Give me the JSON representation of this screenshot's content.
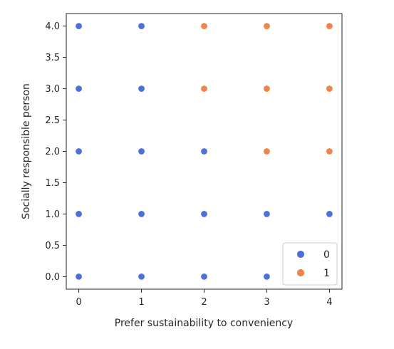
{
  "chart_data": {
    "type": "scatter",
    "title": "",
    "xlabel": "Prefer sustainability to conveniency",
    "ylabel": "Socially responsible person",
    "xlim": [
      -0.2,
      4.2
    ],
    "ylim": [
      -0.2,
      4.2
    ],
    "xticks": [
      "0",
      "1",
      "2",
      "3",
      "4"
    ],
    "yticks": [
      "0.0",
      "0.5",
      "1.0",
      "1.5",
      "2.0",
      "2.5",
      "3.0",
      "3.5",
      "4.0"
    ],
    "legend": {
      "position": "lower-right"
    },
    "grid": false,
    "series": [
      {
        "name": "0",
        "color": "#4c72d9",
        "points": [
          {
            "x": 0,
            "y": 0
          },
          {
            "x": 0,
            "y": 1
          },
          {
            "x": 0,
            "y": 2
          },
          {
            "x": 0,
            "y": 3
          },
          {
            "x": 0,
            "y": 4
          },
          {
            "x": 1,
            "y": 0
          },
          {
            "x": 1,
            "y": 1
          },
          {
            "x": 1,
            "y": 2
          },
          {
            "x": 1,
            "y": 3
          },
          {
            "x": 1,
            "y": 4
          },
          {
            "x": 2,
            "y": 0
          },
          {
            "x": 2,
            "y": 1
          },
          {
            "x": 2,
            "y": 2
          },
          {
            "x": 3,
            "y": 0
          },
          {
            "x": 3,
            "y": 1
          },
          {
            "x": 4,
            "y": 1
          }
        ]
      },
      {
        "name": "1",
        "color": "#ee854a",
        "points": [
          {
            "x": 2,
            "y": 3
          },
          {
            "x": 2,
            "y": 4
          },
          {
            "x": 3,
            "y": 2
          },
          {
            "x": 3,
            "y": 3
          },
          {
            "x": 3,
            "y": 4
          },
          {
            "x": 4,
            "y": 2
          },
          {
            "x": 4,
            "y": 3
          },
          {
            "x": 4,
            "y": 4
          }
        ]
      }
    ]
  }
}
